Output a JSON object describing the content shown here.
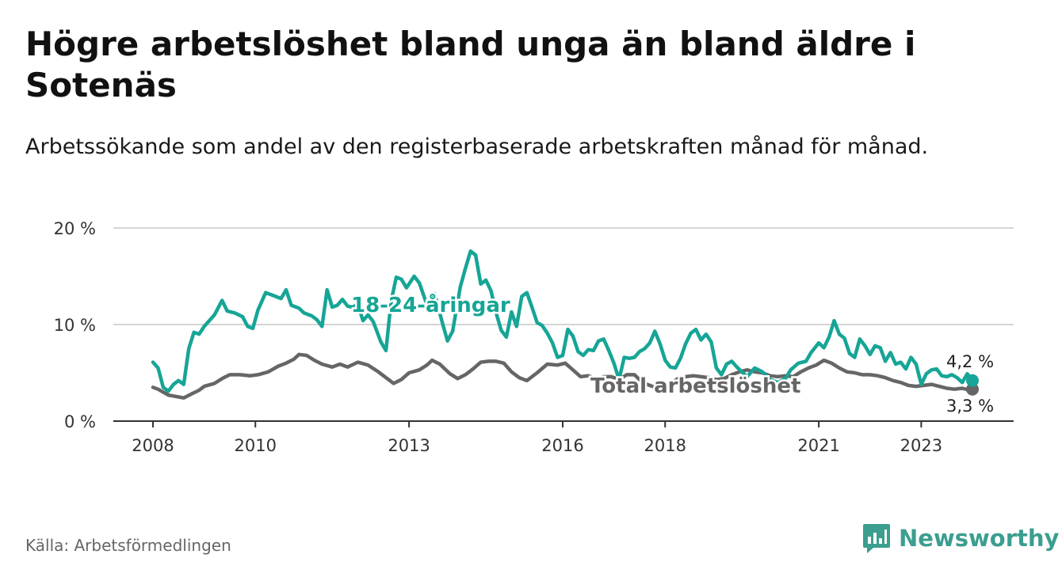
{
  "title": "Högre arbetslöshet bland unga än bland äldre i Sotenäs",
  "subtitle": "Arbetssökande som andel av den registerbaserade arbetskraften månad för månad.",
  "source": "Källa: Arbetsförmedlingen",
  "brand": {
    "name": "Newsworthy",
    "icon": "bar-chart-logo-icon",
    "color": "#3b9e8f"
  },
  "chart_data": {
    "type": "line",
    "title": "Högre arbetslöshet bland unga än bland äldre i Sotenäs",
    "xlabel": "",
    "ylabel": "",
    "ylim": [
      0,
      20
    ],
    "xlim": [
      2008,
      2024.5
    ],
    "y_ticks": [
      {
        "value": 0,
        "label": "0 %"
      },
      {
        "value": 10,
        "label": "10 %"
      },
      {
        "value": 20,
        "label": "20 %"
      }
    ],
    "x_ticks": [
      {
        "value": 2008,
        "label": "2008"
      },
      {
        "value": 2010,
        "label": "2010"
      },
      {
        "value": 2013,
        "label": "2013"
      },
      {
        "value": 2016,
        "label": "2016"
      },
      {
        "value": 2018,
        "label": "2018"
      },
      {
        "value": 2021,
        "label": "2021"
      },
      {
        "value": 2023,
        "label": "2023"
      }
    ],
    "grid": true,
    "series": [
      {
        "name": "Total arbetslöshet",
        "label": "Total arbetslöshet",
        "color": "#666666",
        "end_label": "3,3 %",
        "points": [
          [
            2008.0,
            3.5
          ],
          [
            2008.1,
            3.3
          ],
          [
            2008.2,
            3.0
          ],
          [
            2008.3,
            2.7
          ],
          [
            2008.4,
            2.6
          ],
          [
            2008.5,
            2.5
          ],
          [
            2008.6,
            2.4
          ],
          [
            2008.75,
            2.8
          ],
          [
            2008.9,
            3.2
          ],
          [
            2009.0,
            3.6
          ],
          [
            2009.2,
            3.9
          ],
          [
            2009.35,
            4.4
          ],
          [
            2009.5,
            4.8
          ],
          [
            2009.7,
            4.8
          ],
          [
            2009.9,
            4.7
          ],
          [
            2010.05,
            4.8
          ],
          [
            2010.25,
            5.1
          ],
          [
            2010.45,
            5.7
          ],
          [
            2010.6,
            6.0
          ],
          [
            2010.75,
            6.4
          ],
          [
            2010.85,
            6.9
          ],
          [
            2011.0,
            6.8
          ],
          [
            2011.15,
            6.3
          ],
          [
            2011.3,
            5.9
          ],
          [
            2011.5,
            5.6
          ],
          [
            2011.65,
            5.9
          ],
          [
            2011.8,
            5.6
          ],
          [
            2012.0,
            6.1
          ],
          [
            2012.2,
            5.8
          ],
          [
            2012.4,
            5.1
          ],
          [
            2012.55,
            4.5
          ],
          [
            2012.7,
            3.9
          ],
          [
            2012.85,
            4.3
          ],
          [
            2013.0,
            5.0
          ],
          [
            2013.2,
            5.3
          ],
          [
            2013.35,
            5.8
          ],
          [
            2013.45,
            6.3
          ],
          [
            2013.6,
            5.9
          ],
          [
            2013.8,
            4.9
          ],
          [
            2013.95,
            4.4
          ],
          [
            2014.1,
            4.8
          ],
          [
            2014.25,
            5.4
          ],
          [
            2014.4,
            6.1
          ],
          [
            2014.55,
            6.2
          ],
          [
            2014.7,
            6.2
          ],
          [
            2014.85,
            6.0
          ],
          [
            2015.0,
            5.1
          ],
          [
            2015.15,
            4.5
          ],
          [
            2015.3,
            4.2
          ],
          [
            2015.5,
            5.0
          ],
          [
            2015.7,
            5.9
          ],
          [
            2015.9,
            5.8
          ],
          [
            2016.05,
            6.0
          ],
          [
            2016.2,
            5.3
          ],
          [
            2016.35,
            4.6
          ],
          [
            2016.5,
            4.7
          ],
          [
            2016.65,
            4.3
          ],
          [
            2016.8,
            4.6
          ],
          [
            2016.95,
            4.6
          ],
          [
            2017.1,
            4.3
          ],
          [
            2017.25,
            4.8
          ],
          [
            2017.4,
            4.8
          ],
          [
            2017.5,
            4.3
          ],
          [
            2017.65,
            3.8
          ],
          [
            2017.8,
            3.5
          ],
          [
            2017.95,
            3.3
          ],
          [
            2018.1,
            3.8
          ],
          [
            2018.25,
            4.4
          ],
          [
            2018.4,
            4.6
          ],
          [
            2018.55,
            4.7
          ],
          [
            2018.7,
            4.6
          ],
          [
            2018.85,
            4.5
          ],
          [
            2019.0,
            4.3
          ],
          [
            2019.15,
            4.4
          ],
          [
            2019.3,
            4.8
          ],
          [
            2019.45,
            5.1
          ],
          [
            2019.6,
            5.3
          ],
          [
            2019.75,
            5.1
          ],
          [
            2019.9,
            5.0
          ],
          [
            2020.05,
            4.7
          ],
          [
            2020.2,
            4.6
          ],
          [
            2020.35,
            4.7
          ],
          [
            2020.5,
            4.6
          ],
          [
            2020.65,
            5.1
          ],
          [
            2020.8,
            5.5
          ],
          [
            2020.95,
            5.8
          ],
          [
            2021.1,
            6.3
          ],
          [
            2021.25,
            6.0
          ],
          [
            2021.4,
            5.5
          ],
          [
            2021.55,
            5.1
          ],
          [
            2021.7,
            5.0
          ],
          [
            2021.85,
            4.8
          ],
          [
            2022.0,
            4.8
          ],
          [
            2022.15,
            4.7
          ],
          [
            2022.3,
            4.5
          ],
          [
            2022.45,
            4.2
          ],
          [
            2022.6,
            4.0
          ],
          [
            2022.75,
            3.7
          ],
          [
            2022.9,
            3.6
          ],
          [
            2023.05,
            3.7
          ],
          [
            2023.2,
            3.8
          ],
          [
            2023.35,
            3.6
          ],
          [
            2023.5,
            3.4
          ],
          [
            2023.65,
            3.3
          ],
          [
            2023.8,
            3.4
          ],
          [
            2023.95,
            3.2
          ],
          [
            2024.0,
            3.3
          ]
        ]
      },
      {
        "name": "18-24-åringar",
        "label": "18-24-åringar",
        "color": "#16a596",
        "end_label": "4,2 %",
        "points": [
          [
            2008.0,
            6.1
          ],
          [
            2008.1,
            5.5
          ],
          [
            2008.2,
            3.5
          ],
          [
            2008.3,
            3.1
          ],
          [
            2008.4,
            3.8
          ],
          [
            2008.5,
            4.2
          ],
          [
            2008.6,
            3.8
          ],
          [
            2008.7,
            7.5
          ],
          [
            2008.8,
            9.2
          ],
          [
            2008.9,
            9.0
          ],
          [
            2009.0,
            9.8
          ],
          [
            2009.1,
            10.4
          ],
          [
            2009.2,
            11.0
          ],
          [
            2009.35,
            12.5
          ],
          [
            2009.45,
            11.4
          ],
          [
            2009.6,
            11.2
          ],
          [
            2009.75,
            10.8
          ],
          [
            2009.85,
            9.8
          ],
          [
            2009.95,
            9.6
          ],
          [
            2010.05,
            11.5
          ],
          [
            2010.2,
            13.3
          ],
          [
            2010.35,
            13.0
          ],
          [
            2010.5,
            12.7
          ],
          [
            2010.6,
            13.6
          ],
          [
            2010.7,
            12.0
          ],
          [
            2010.85,
            11.7
          ],
          [
            2010.95,
            11.2
          ],
          [
            2011.1,
            10.9
          ],
          [
            2011.2,
            10.5
          ],
          [
            2011.3,
            9.8
          ],
          [
            2011.4,
            13.6
          ],
          [
            2011.5,
            11.8
          ],
          [
            2011.6,
            12.0
          ],
          [
            2011.7,
            12.6
          ],
          [
            2011.8,
            11.9
          ],
          [
            2011.9,
            11.8
          ],
          [
            2012.0,
            12.1
          ],
          [
            2012.1,
            10.4
          ],
          [
            2012.2,
            11.0
          ],
          [
            2012.3,
            10.3
          ],
          [
            2012.45,
            8.2
          ],
          [
            2012.55,
            7.3
          ],
          [
            2012.65,
            12.4
          ],
          [
            2012.75,
            14.9
          ],
          [
            2012.85,
            14.7
          ],
          [
            2012.95,
            13.8
          ],
          [
            2013.1,
            15.0
          ],
          [
            2013.2,
            14.3
          ],
          [
            2013.3,
            12.8
          ],
          [
            2013.4,
            11.3
          ],
          [
            2013.5,
            13.2
          ],
          [
            2013.65,
            10.2
          ],
          [
            2013.75,
            8.3
          ],
          [
            2013.85,
            9.3
          ],
          [
            2014.0,
            13.9
          ],
          [
            2014.1,
            15.8
          ],
          [
            2014.2,
            17.6
          ],
          [
            2014.3,
            17.2
          ],
          [
            2014.4,
            14.2
          ],
          [
            2014.5,
            14.6
          ],
          [
            2014.6,
            13.5
          ],
          [
            2014.7,
            11.2
          ],
          [
            2014.8,
            9.4
          ],
          [
            2014.9,
            8.7
          ],
          [
            2015.0,
            11.3
          ],
          [
            2015.1,
            9.8
          ],
          [
            2015.2,
            12.9
          ],
          [
            2015.3,
            13.3
          ],
          [
            2015.4,
            11.8
          ],
          [
            2015.5,
            10.2
          ],
          [
            2015.6,
            9.9
          ],
          [
            2015.7,
            9.1
          ],
          [
            2015.8,
            8.1
          ],
          [
            2015.9,
            6.6
          ],
          [
            2016.0,
            6.8
          ],
          [
            2016.1,
            9.5
          ],
          [
            2016.2,
            8.8
          ],
          [
            2016.3,
            7.2
          ],
          [
            2016.4,
            6.8
          ],
          [
            2016.5,
            7.4
          ],
          [
            2016.6,
            7.3
          ],
          [
            2016.7,
            8.3
          ],
          [
            2016.8,
            8.5
          ],
          [
            2016.9,
            7.3
          ],
          [
            2017.0,
            6.0
          ],
          [
            2017.1,
            4.3
          ],
          [
            2017.2,
            6.6
          ],
          [
            2017.3,
            6.5
          ],
          [
            2017.4,
            6.6
          ],
          [
            2017.5,
            7.2
          ],
          [
            2017.6,
            7.5
          ],
          [
            2017.7,
            8.1
          ],
          [
            2017.8,
            9.3
          ],
          [
            2017.9,
            8.0
          ],
          [
            2018.0,
            6.3
          ],
          [
            2018.1,
            5.6
          ],
          [
            2018.2,
            5.5
          ],
          [
            2018.3,
            6.5
          ],
          [
            2018.4,
            8.0
          ],
          [
            2018.5,
            9.1
          ],
          [
            2018.6,
            9.5
          ],
          [
            2018.7,
            8.4
          ],
          [
            2018.8,
            9.0
          ],
          [
            2018.9,
            8.2
          ],
          [
            2019.0,
            5.5
          ],
          [
            2019.1,
            4.8
          ],
          [
            2019.2,
            5.9
          ],
          [
            2019.3,
            6.2
          ],
          [
            2019.4,
            5.6
          ],
          [
            2019.5,
            5.1
          ],
          [
            2019.6,
            4.6
          ],
          [
            2019.75,
            5.5
          ],
          [
            2019.9,
            5.1
          ],
          [
            2020.05,
            4.3
          ],
          [
            2020.2,
            4.0
          ],
          [
            2020.35,
            4.4
          ],
          [
            2020.45,
            5.3
          ],
          [
            2020.6,
            6.0
          ],
          [
            2020.75,
            6.2
          ],
          [
            2020.85,
            7.1
          ],
          [
            2021.0,
            8.1
          ],
          [
            2021.1,
            7.6
          ],
          [
            2021.2,
            8.7
          ],
          [
            2021.3,
            10.4
          ],
          [
            2021.4,
            9.0
          ],
          [
            2021.5,
            8.6
          ],
          [
            2021.6,
            7.0
          ],
          [
            2021.7,
            6.6
          ],
          [
            2021.8,
            8.5
          ],
          [
            2021.9,
            7.8
          ],
          [
            2022.0,
            6.9
          ],
          [
            2022.1,
            7.8
          ],
          [
            2022.2,
            7.6
          ],
          [
            2022.3,
            6.2
          ],
          [
            2022.4,
            7.1
          ],
          [
            2022.5,
            5.9
          ],
          [
            2022.6,
            6.1
          ],
          [
            2022.7,
            5.4
          ],
          [
            2022.8,
            6.6
          ],
          [
            2022.9,
            5.9
          ],
          [
            2023.0,
            3.8
          ],
          [
            2023.1,
            4.9
          ],
          [
            2023.2,
            5.3
          ],
          [
            2023.3,
            5.4
          ],
          [
            2023.4,
            4.7
          ],
          [
            2023.5,
            4.6
          ],
          [
            2023.6,
            4.8
          ],
          [
            2023.7,
            4.5
          ],
          [
            2023.8,
            4.0
          ],
          [
            2023.9,
            4.9
          ],
          [
            2024.0,
            4.2
          ]
        ]
      }
    ]
  }
}
